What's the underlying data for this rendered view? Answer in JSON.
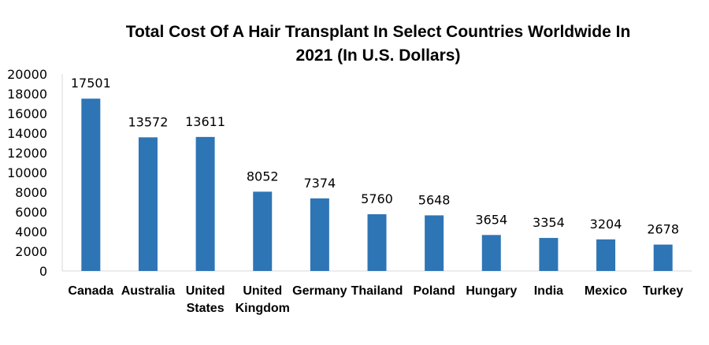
{
  "chart_data": {
    "type": "bar",
    "title_line1": "Total Cost Of A Hair Transplant  In Select Countries Worldwide In",
    "title_line2": "2021 (In U.S. Dollars)",
    "categories": [
      "Canada",
      "Australia",
      "United States",
      "United Kingdom",
      "Germany",
      "Thailand",
      "Poland",
      "Hungary",
      "India",
      "Mexico",
      "Turkey"
    ],
    "category_lines": [
      [
        "Canada"
      ],
      [
        "Australia"
      ],
      [
        "United",
        "States"
      ],
      [
        "United",
        "Kingdom"
      ],
      [
        "Germany"
      ],
      [
        "Thailand"
      ],
      [
        "Poland"
      ],
      [
        "Hungary"
      ],
      [
        "India"
      ],
      [
        "Mexico"
      ],
      [
        "Turkey"
      ]
    ],
    "values": [
      17501,
      13572,
      13611,
      8052,
      7374,
      5760,
      5648,
      3654,
      3354,
      3204,
      2678
    ],
    "data_labels": [
      "17501",
      "13572",
      "13611",
      "8052",
      "7374",
      "5760",
      "5648",
      "3654",
      "3354",
      "3204",
      "2678"
    ],
    "yticks": [
      0,
      2000,
      4000,
      6000,
      8000,
      10000,
      12000,
      14000,
      16000,
      18000,
      20000
    ],
    "ylim": [
      0,
      20000
    ],
    "xlabel": "",
    "ylabel": "",
    "grid": false,
    "legend": "none",
    "bar_color": "#2E75B6",
    "axis_color": "#D9D9D9"
  }
}
